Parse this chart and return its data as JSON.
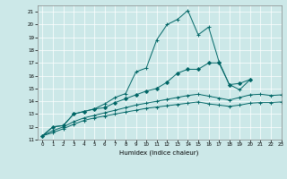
{
  "xlabel": "Humidex (Indice chaleur)",
  "ylabel": "",
  "xlim": [
    -0.5,
    23
  ],
  "ylim": [
    11,
    21.5
  ],
  "xticks": [
    0,
    1,
    2,
    3,
    4,
    5,
    6,
    7,
    8,
    9,
    10,
    11,
    12,
    13,
    14,
    15,
    16,
    17,
    18,
    19,
    20,
    21,
    22,
    23
  ],
  "yticks": [
    11,
    12,
    13,
    14,
    15,
    16,
    17,
    18,
    19,
    20,
    21
  ],
  "bg_color": "#cce8e8",
  "line_color": "#006666",
  "series": [
    {
      "x": [
        0,
        1,
        2,
        3,
        4,
        5,
        6,
        7,
        8,
        9,
        10,
        11,
        12,
        13,
        14,
        15,
        16,
        17,
        18,
        19,
        20,
        21
      ],
      "y": [
        11.3,
        12.0,
        12.1,
        13.0,
        13.2,
        13.4,
        13.8,
        14.3,
        14.6,
        16.3,
        16.6,
        18.8,
        20.0,
        20.4,
        21.1,
        19.2,
        19.8,
        17.1,
        15.3,
        14.9,
        15.7,
        null
      ],
      "marker": "+"
    },
    {
      "x": [
        0,
        1,
        2,
        3,
        4,
        5,
        6,
        7,
        8,
        9,
        10,
        11,
        12,
        13,
        14,
        15,
        16,
        17,
        18,
        19,
        20,
        21,
        22,
        23
      ],
      "y": [
        11.3,
        12.0,
        12.1,
        13.0,
        13.2,
        13.4,
        13.5,
        13.9,
        14.2,
        14.5,
        14.8,
        15.0,
        15.5,
        16.2,
        16.5,
        16.5,
        17.0,
        17.0,
        15.3,
        15.4,
        15.7,
        null,
        null,
        null
      ],
      "marker": "D"
    },
    {
      "x": [
        0,
        1,
        2,
        3,
        4,
        5,
        6,
        7,
        8,
        9,
        10,
        11,
        12,
        13,
        14,
        15,
        16,
        17,
        18,
        19,
        20,
        21,
        22,
        23
      ],
      "y": [
        11.3,
        11.7,
        12.0,
        12.4,
        12.7,
        12.9,
        13.1,
        13.3,
        13.5,
        13.7,
        13.85,
        14.0,
        14.15,
        14.3,
        14.45,
        14.55,
        14.4,
        14.25,
        14.1,
        14.3,
        14.5,
        14.55,
        14.45,
        14.5
      ],
      "marker": "+"
    },
    {
      "x": [
        0,
        1,
        2,
        3,
        4,
        5,
        6,
        7,
        8,
        9,
        10,
        11,
        12,
        13,
        14,
        15,
        16,
        17,
        18,
        19,
        20,
        21,
        22,
        23
      ],
      "y": [
        11.3,
        11.55,
        11.85,
        12.2,
        12.5,
        12.7,
        12.85,
        13.0,
        13.15,
        13.3,
        13.45,
        13.55,
        13.65,
        13.75,
        13.85,
        13.95,
        13.8,
        13.7,
        13.6,
        13.7,
        13.85,
        13.9,
        13.9,
        13.95
      ],
      "marker": "+"
    }
  ]
}
